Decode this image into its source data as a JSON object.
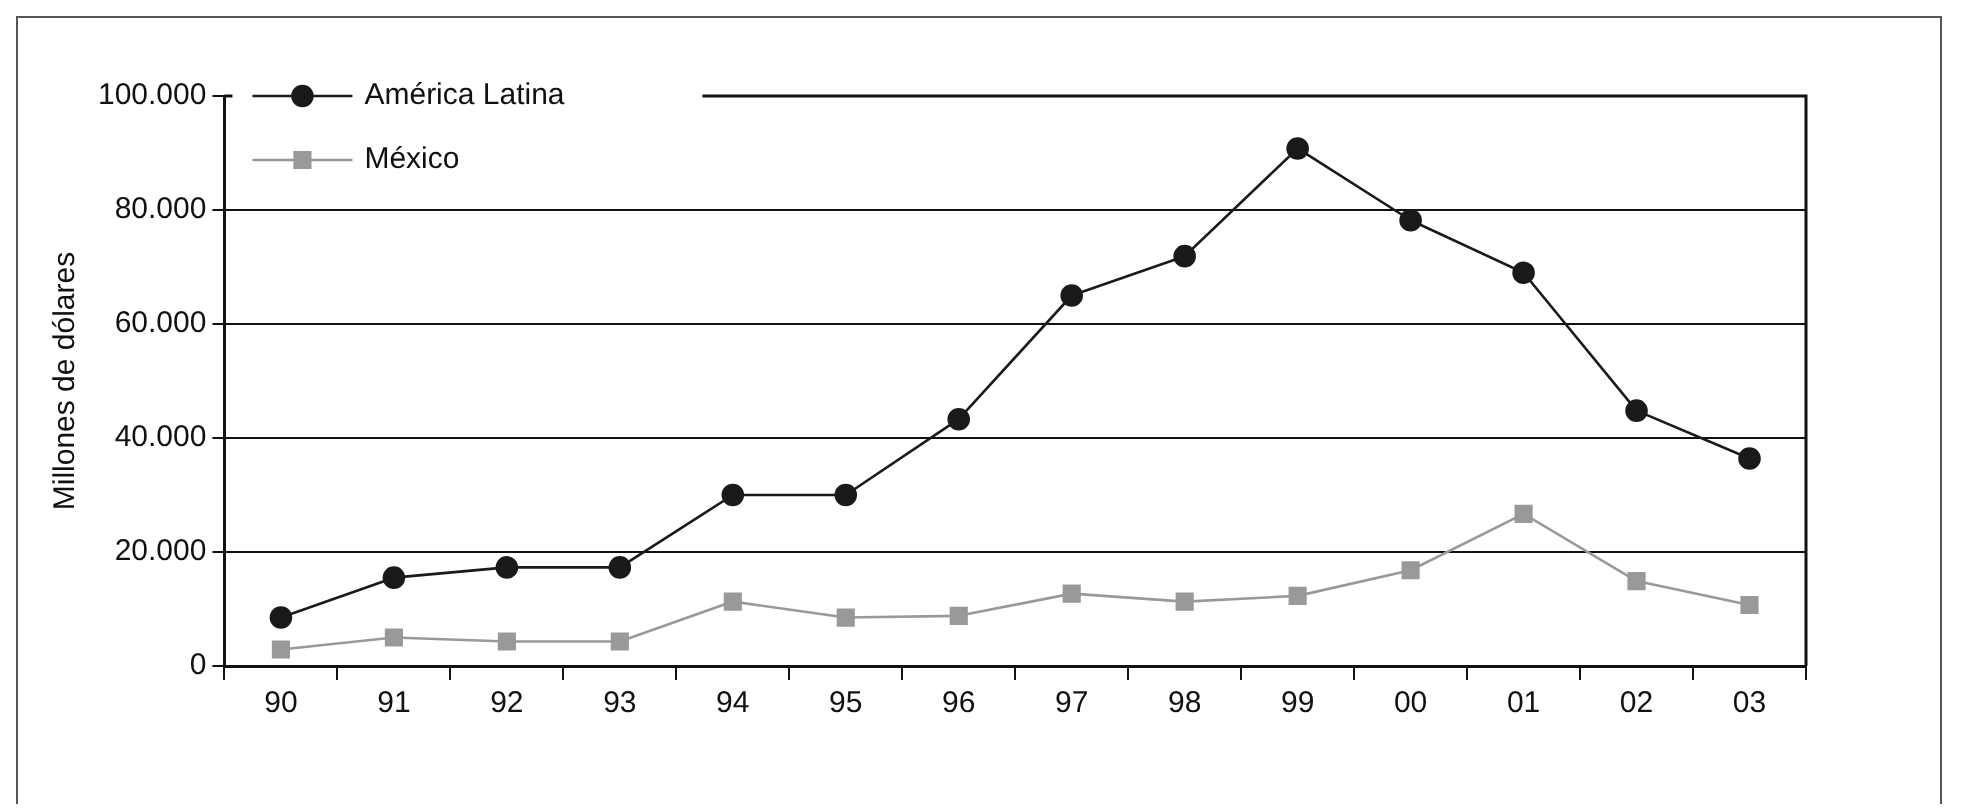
{
  "chart_data": {
    "type": "line",
    "ylabel": "Millones de dólares",
    "categories": [
      "90",
      "91",
      "92",
      "93",
      "94",
      "95",
      "96",
      "97",
      "98",
      "99",
      "00",
      "01",
      "02",
      "03"
    ],
    "series": [
      {
        "name": "América Latina",
        "color": "#1a1a1a",
        "marker": "circle",
        "values": [
          8500,
          15500,
          17300,
          17300,
          30000,
          30000,
          43300,
          65000,
          71900,
          90800,
          78200,
          69000,
          44800,
          36400
        ]
      },
      {
        "name": "México",
        "color": "#999999",
        "marker": "square",
        "values": [
          2900,
          5000,
          4300,
          4300,
          11300,
          8500,
          8800,
          12700,
          11300,
          12300,
          16800,
          26700,
          14900,
          10700
        ]
      }
    ],
    "ylim": [
      0,
      100000
    ],
    "yticks": [
      0,
      {
        "value": 20000,
        "label": "20.000"
      },
      {
        "value": 40000,
        "label": "40.000"
      },
      {
        "value": 60000,
        "label": "60.000"
      },
      {
        "value": 80000,
        "label": "80.000"
      },
      {
        "value": 100000,
        "label": "100.000"
      }
    ],
    "grid": "y",
    "legend": "top left"
  }
}
